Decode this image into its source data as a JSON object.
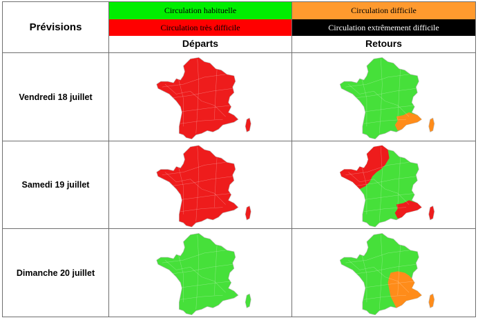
{
  "header": {
    "title": "Prévisions",
    "col_departs": "Départs",
    "col_retours": "Retours"
  },
  "legend": [
    {
      "label": "Circulation habituelle",
      "color": "#00ee00",
      "text_color": "#000000"
    },
    {
      "label": "Circulation difficile",
      "color": "#ff9a2e",
      "text_color": "#000000"
    },
    {
      "label": "Circulation très difficile",
      "color": "#ff0000",
      "text_color": "#000000"
    },
    {
      "label": "Circulation extrêmement difficile",
      "color": "#000000",
      "text_color": "#ffffff"
    }
  ],
  "colors": {
    "green": "#46e03a",
    "orange": "#ff8c1a",
    "red": "#ee1c1c",
    "border": "#6e6e6e"
  },
  "rows": [
    {
      "label": "Vendredi 18 juillet",
      "departs": {
        "base": "red",
        "zones": []
      },
      "retours": {
        "base": "green",
        "zones": [
          {
            "region": "southeast",
            "color": "orange"
          }
        ]
      }
    },
    {
      "label": "Samedi 19 juillet",
      "departs": {
        "base": "red",
        "zones": []
      },
      "retours": {
        "base": "green",
        "zones": [
          {
            "region": "west",
            "color": "red"
          },
          {
            "region": "southeast",
            "color": "red"
          }
        ]
      }
    },
    {
      "label": "Dimanche 20 juillet",
      "departs": {
        "base": "green",
        "zones": []
      },
      "retours": {
        "base": "green",
        "zones": [
          {
            "region": "rhone-southeast",
            "color": "orange"
          }
        ]
      }
    }
  ]
}
